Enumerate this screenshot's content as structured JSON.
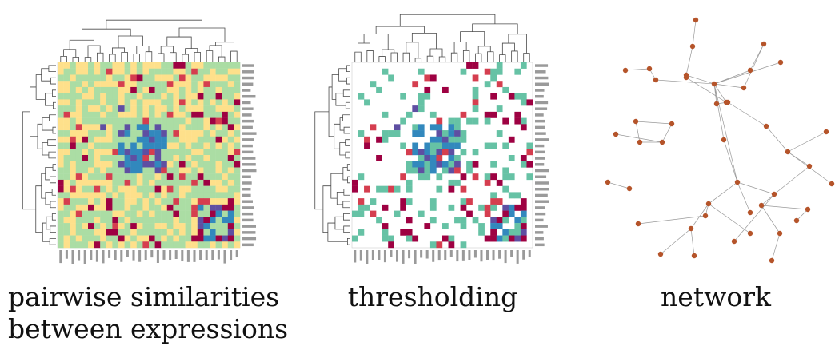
{
  "captions": {
    "similarity_line1": "pairwise similarities",
    "similarity_line2": "between expressions",
    "thresholding": "thresholding",
    "network": "network"
  },
  "colors": {
    "background": "#ffffff",
    "tree_line": "#4a4a4a",
    "heat_low": "#5e4fa2",
    "heat_midlow": "#3288bd",
    "heat_mid": "#abdda4",
    "heat_midhigh": "#fee08b",
    "heat_high": "#d53e4f",
    "heat_max": "#9e0142",
    "threshold_cell": "#66c2a5",
    "network_edge": "#9a9a9a",
    "network_node": "#b5542a"
  }
}
